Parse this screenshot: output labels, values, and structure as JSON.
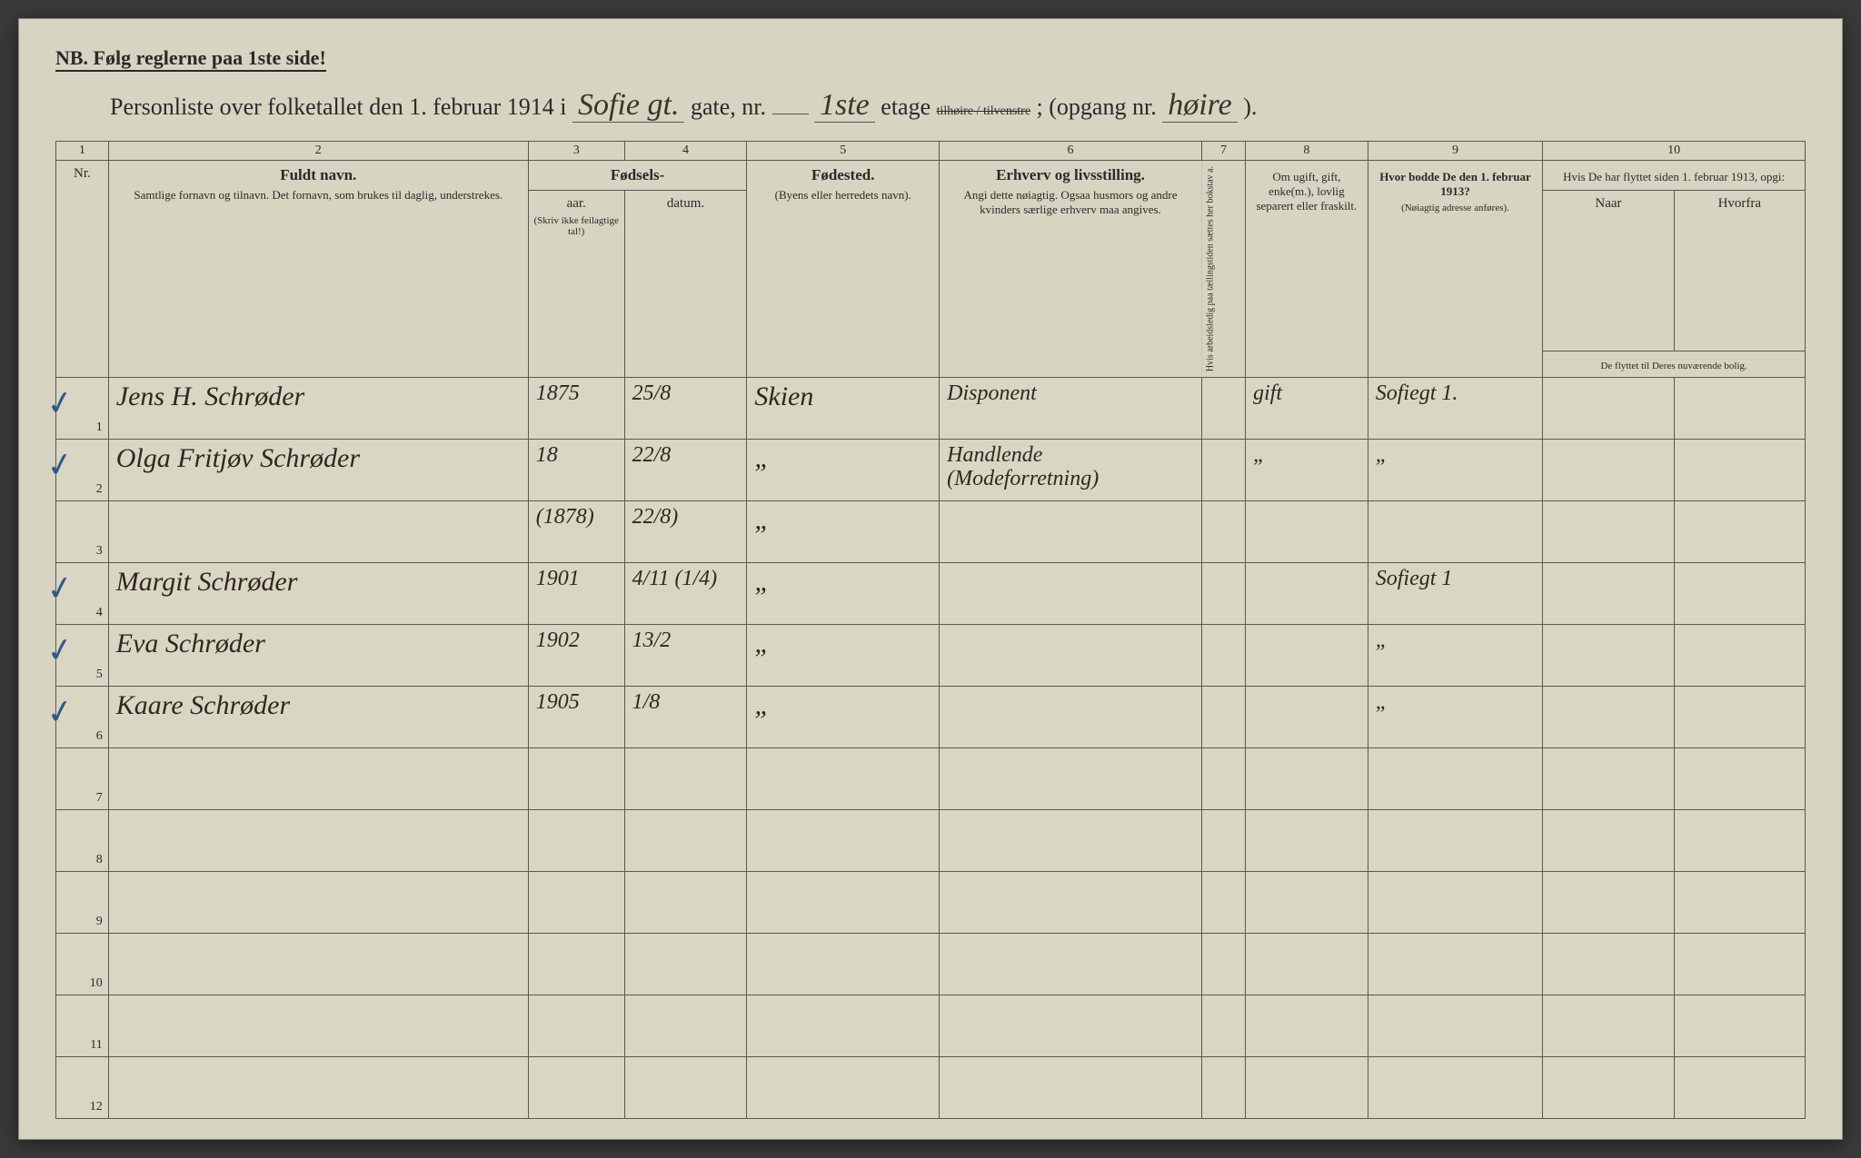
{
  "header": {
    "nb_text": "NB.   Følg reglerne paa 1ste side!",
    "title_prefix": "Personliste over folketallet den 1. februar 1914 i",
    "street_written": "Sofie gt.",
    "gate_label": "gate, nr.",
    "gate_nr": "",
    "etage_label": "etage",
    "etage_written": "1ste",
    "side_opts": "tilhøire / tilvenstre",
    "opgang_label": "; (opgang nr.",
    "opgang_written": "høire",
    "opgang_close": ")."
  },
  "columns": {
    "c1": "1",
    "c2": "2",
    "c3": "3",
    "c4": "4",
    "c5": "5",
    "c6": "6",
    "c7": "7",
    "c8": "8",
    "c9": "9",
    "c10": "10",
    "nr": "Nr.",
    "name_main": "Fuldt navn.",
    "name_sub": "Samtlige fornavn og tilnavn.  Det fornavn, som brukes til daglig, understrekes.",
    "birth_main": "Fødsels-",
    "birth_yr": "aar.",
    "birth_date": "datum.",
    "birth_note": "(Skriv ikke feilagtige tal!)",
    "birthplace": "Fødested.",
    "birthplace_sub": "(Byens eller herredets navn).",
    "occ_main": "Erhverv og livsstilling.",
    "occ_sub": "Angi dette nøiagtig. Ogsaa husmors og andre kvinders særlige erhverv maa angives.",
    "c7_text": "Hvis arbeidsledig paa tællingstiden sættes her bokstav a.",
    "marital": "Om ugift, gift, enke(m.), lovlig separert eller fraskilt.",
    "prev_addr": "Hvor bodde De den 1. februar 1913?",
    "prev_addr_sub": "(Nøiagtig adresse anføres).",
    "moved_main": "Hvis De har flyttet siden 1. februar 1913, opgi:",
    "moved_when": "Naar",
    "moved_from": "Hvorfra",
    "moved_foot": "De flyttet til Deres nuværende bolig."
  },
  "rows": [
    {
      "n": "1",
      "check": "✓",
      "name": "Jens H. Schrøder",
      "yr": "1875",
      "date": "25/8",
      "place": "Skien",
      "occ": "Disponent",
      "marital": "gift",
      "prev": "Sofiegt 1."
    },
    {
      "n": "2",
      "check": "✓",
      "name": "Olga Fritjøv Schrøder",
      "yr": "18",
      "date": "22/8",
      "place": "„",
      "occ": "Handlende (Modeforretning)",
      "marital": "„",
      "prev": "„"
    },
    {
      "n": "3",
      "check": "",
      "name": "",
      "yr": "(1878)",
      "date": "22/8)",
      "place": "„",
      "occ": "",
      "marital": "",
      "prev": ""
    },
    {
      "n": "4",
      "check": "✓",
      "name": "Margit Schrøder",
      "yr": "1901",
      "date": "4/11 (1/4)",
      "place": "„",
      "occ": "",
      "marital": "",
      "prev": "Sofiegt 1"
    },
    {
      "n": "5",
      "check": "✓",
      "name": "Eva Schrøder",
      "yr": "1902",
      "date": "13/2",
      "place": "„",
      "occ": "",
      "marital": "",
      "prev": "„"
    },
    {
      "n": "6",
      "check": "✓",
      "name": "Kaare Schrøder",
      "yr": "1905",
      "date": "1/8",
      "place": "„",
      "occ": "",
      "marital": "",
      "prev": "„"
    },
    {
      "n": "7"
    },
    {
      "n": "8"
    },
    {
      "n": "9"
    },
    {
      "n": "10"
    },
    {
      "n": "11"
    },
    {
      "n": "12"
    }
  ],
  "style": {
    "paper": "#d8d4c2",
    "ink": "#2a2a28",
    "hand_ink": "#2e2820",
    "check_ink": "#2c5a8a",
    "rule": "#5a5850"
  }
}
